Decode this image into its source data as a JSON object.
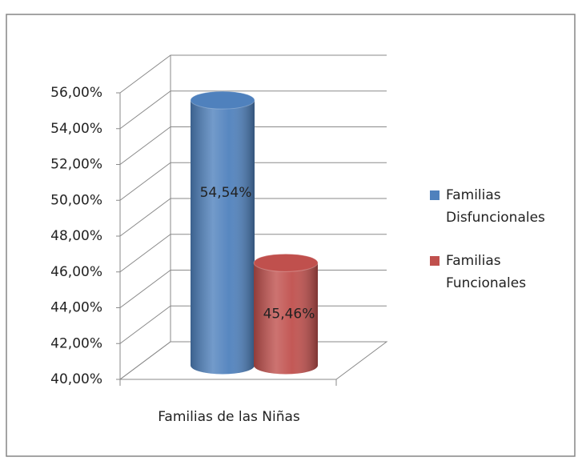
{
  "chart_data": {
    "type": "bar3d",
    "categories": [
      "Familias de las Niñas"
    ],
    "series": [
      {
        "name": "Familias Disfuncionales",
        "color": "#4f81bd",
        "values": [
          54.54
        ],
        "value_labels": [
          "54,54%"
        ]
      },
      {
        "name": "Familias Funcionales",
        "color": "#c0504d",
        "values": [
          45.46
        ],
        "value_labels": [
          "45,46%"
        ]
      }
    ],
    "ylim": [
      40,
      56
    ],
    "yticks": [
      {
        "value": 40,
        "label": "40,00%"
      },
      {
        "value": 42,
        "label": "42,00%"
      },
      {
        "value": 44,
        "label": "44,00%"
      },
      {
        "value": 46,
        "label": "46,00%"
      },
      {
        "value": 48,
        "label": "48,00%"
      },
      {
        "value": 50,
        "label": "50,00%"
      },
      {
        "value": 52,
        "label": "52,00%"
      },
      {
        "value": 54,
        "label": "54,00%"
      },
      {
        "value": 56,
        "label": "56,00%"
      }
    ],
    "grid": true,
    "legend": "right"
  }
}
